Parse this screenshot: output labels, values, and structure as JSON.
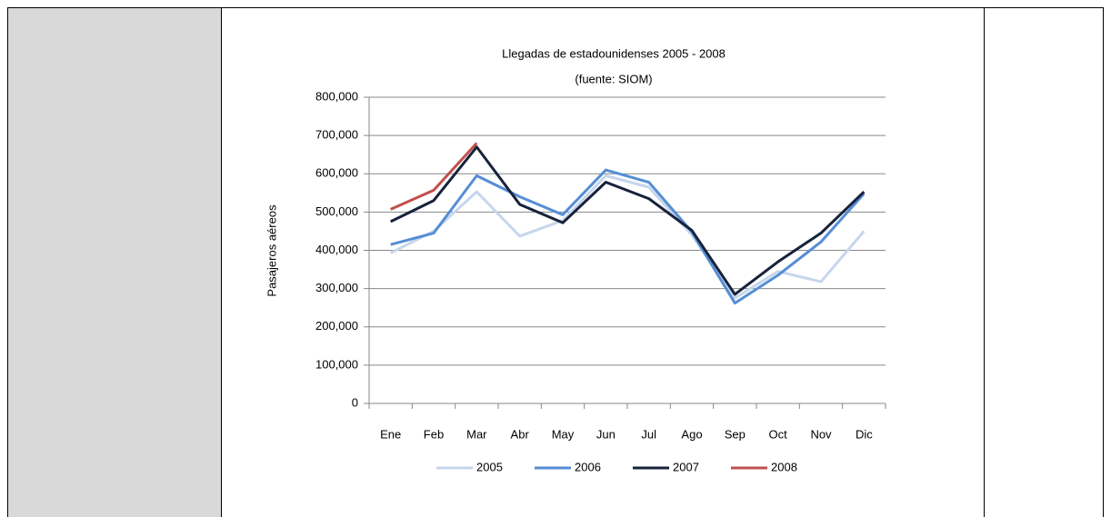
{
  "chart_data": {
    "type": "line",
    "title": "Llegadas de estadounidenses 2005 - 2008",
    "subtitle": "(fuente: SIOM)",
    "y_label": "Pasajeros aéreos",
    "categories": [
      "Ene",
      "Feb",
      "Mar",
      "Abr",
      "May",
      "Jun",
      "Jul",
      "Ago",
      "Sep",
      "Oct",
      "Nov",
      "Dic"
    ],
    "series": [
      {
        "name": "2005",
        "color": "#c6d6ec",
        "values": [
          393000,
          450000,
          553000,
          437000,
          478000,
          595000,
          565000,
          440000,
          275000,
          345000,
          318000,
          450000
        ]
      },
      {
        "name": "2006",
        "color": "#558ed5",
        "values": [
          415000,
          445000,
          595000,
          540000,
          493000,
          610000,
          578000,
          448000,
          262000,
          335000,
          422000,
          548000
        ]
      },
      {
        "name": "2007",
        "color": "#17223b",
        "values": [
          475000,
          530000,
          670000,
          520000,
          472000,
          578000,
          535000,
          452000,
          285000,
          370000,
          445000,
          553000
        ]
      },
      {
        "name": "2008",
        "color": "#c0504d",
        "values": [
          507000,
          557000,
          680000,
          null,
          null,
          null,
          null,
          null,
          null,
          null,
          null,
          null
        ]
      }
    ],
    "ylim": [
      0,
      800000
    ],
    "yticks": [
      0,
      {
        "value": 100000,
        "label": "100,000"
      },
      {
        "value": 200000,
        "label": "200,000"
      },
      {
        "value": 300000,
        "label": "300,000"
      },
      {
        "value": 400000,
        "label": "400,000"
      },
      {
        "value": 500000,
        "label": "500,000"
      },
      {
        "value": 600000,
        "label": "600,000"
      },
      {
        "value": 700000,
        "label": "700,000"
      },
      {
        "value": 800000,
        "label": "800,000"
      }
    ],
    "grid": true,
    "legend": "bottom"
  }
}
